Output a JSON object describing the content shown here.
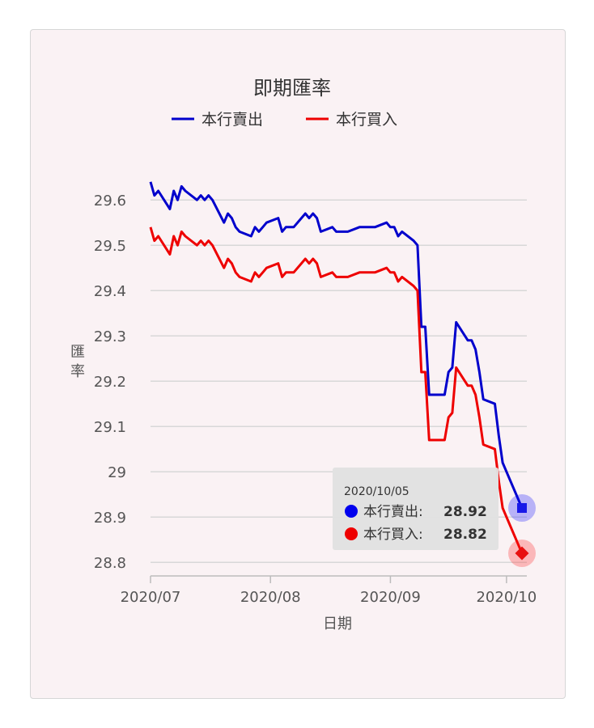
{
  "chart_data": {
    "type": "line",
    "title": "即期匯率",
    "xlabel": "日期",
    "ylabel": "匯率",
    "ylim": [
      28.77,
      29.67
    ],
    "yticks": [
      "29.6",
      "29.5",
      "29.4",
      "29.3",
      "29.2",
      "29.1",
      "29",
      "28.9",
      "28.8"
    ],
    "ytick_values": [
      29.6,
      29.5,
      29.4,
      29.3,
      29.2,
      29.1,
      29.0,
      28.9,
      28.8
    ],
    "xticks": [
      {
        "label": "2020/07",
        "date": "2020-07-01"
      },
      {
        "label": "2020/08",
        "date": "2020-08-01"
      },
      {
        "label": "2020/09",
        "date": "2020-09-01"
      },
      {
        "label": "2020/10",
        "date": "2020-10-01"
      }
    ],
    "x": [
      "2020-07-01",
      "2020-07-02",
      "2020-07-03",
      "2020-07-06",
      "2020-07-07",
      "2020-07-08",
      "2020-07-09",
      "2020-07-10",
      "2020-07-13",
      "2020-07-14",
      "2020-07-15",
      "2020-07-16",
      "2020-07-17",
      "2020-07-20",
      "2020-07-21",
      "2020-07-22",
      "2020-07-23",
      "2020-07-24",
      "2020-07-27",
      "2020-07-28",
      "2020-07-29",
      "2020-07-30",
      "2020-07-31",
      "2020-08-03",
      "2020-08-04",
      "2020-08-05",
      "2020-08-06",
      "2020-08-07",
      "2020-08-10",
      "2020-08-11",
      "2020-08-12",
      "2020-08-13",
      "2020-08-14",
      "2020-08-17",
      "2020-08-18",
      "2020-08-19",
      "2020-08-20",
      "2020-08-21",
      "2020-08-24",
      "2020-08-25",
      "2020-08-26",
      "2020-08-27",
      "2020-08-28",
      "2020-08-31",
      "2020-09-01",
      "2020-09-02",
      "2020-09-03",
      "2020-09-04",
      "2020-09-07",
      "2020-09-08",
      "2020-09-09",
      "2020-09-10",
      "2020-09-11",
      "2020-09-14",
      "2020-09-15",
      "2020-09-16",
      "2020-09-17",
      "2020-09-18",
      "2020-09-21",
      "2020-09-22",
      "2020-09-23",
      "2020-09-24",
      "2020-09-25",
      "2020-09-28",
      "2020-09-29",
      "2020-09-30",
      "2020-10-05"
    ],
    "series": [
      {
        "name": "本行賣出",
        "color": "#0000cc",
        "values": [
          29.64,
          29.61,
          29.62,
          29.58,
          29.62,
          29.6,
          29.63,
          29.62,
          29.6,
          29.61,
          29.6,
          29.61,
          29.6,
          29.55,
          29.57,
          29.56,
          29.54,
          29.53,
          29.52,
          29.54,
          29.53,
          29.54,
          29.55,
          29.56,
          29.53,
          29.54,
          29.54,
          29.54,
          29.57,
          29.56,
          29.57,
          29.56,
          29.53,
          29.54,
          29.53,
          29.53,
          29.53,
          29.53,
          29.54,
          29.54,
          29.54,
          29.54,
          29.54,
          29.55,
          29.54,
          29.54,
          29.52,
          29.53,
          29.51,
          29.5,
          29.32,
          29.32,
          29.17,
          29.17,
          29.17,
          29.22,
          29.23,
          29.33,
          29.29,
          29.29,
          29.27,
          29.22,
          29.16,
          29.15,
          29.08,
          29.02,
          28.92
        ]
      },
      {
        "name": "本行買入",
        "color": "#ee0000",
        "values": [
          29.54,
          29.51,
          29.52,
          29.48,
          29.52,
          29.5,
          29.53,
          29.52,
          29.5,
          29.51,
          29.5,
          29.51,
          29.5,
          29.45,
          29.47,
          29.46,
          29.44,
          29.43,
          29.42,
          29.44,
          29.43,
          29.44,
          29.45,
          29.46,
          29.43,
          29.44,
          29.44,
          29.44,
          29.47,
          29.46,
          29.47,
          29.46,
          29.43,
          29.44,
          29.43,
          29.43,
          29.43,
          29.43,
          29.44,
          29.44,
          29.44,
          29.44,
          29.44,
          29.45,
          29.44,
          29.44,
          29.42,
          29.43,
          29.41,
          29.4,
          29.22,
          29.22,
          29.07,
          29.07,
          29.07,
          29.12,
          29.13,
          29.23,
          29.19,
          29.19,
          29.17,
          29.12,
          29.06,
          29.05,
          28.98,
          28.92,
          28.82
        ]
      }
    ],
    "legend": "top-center",
    "grid": true,
    "tooltip": {
      "date": "2020/10/05",
      "rows": [
        {
          "label": "本行賣出:",
          "value": "28.92",
          "color": "#0000ee"
        },
        {
          "label": "本行買入:",
          "value": "28.82",
          "color": "#ee0000"
        }
      ]
    }
  }
}
